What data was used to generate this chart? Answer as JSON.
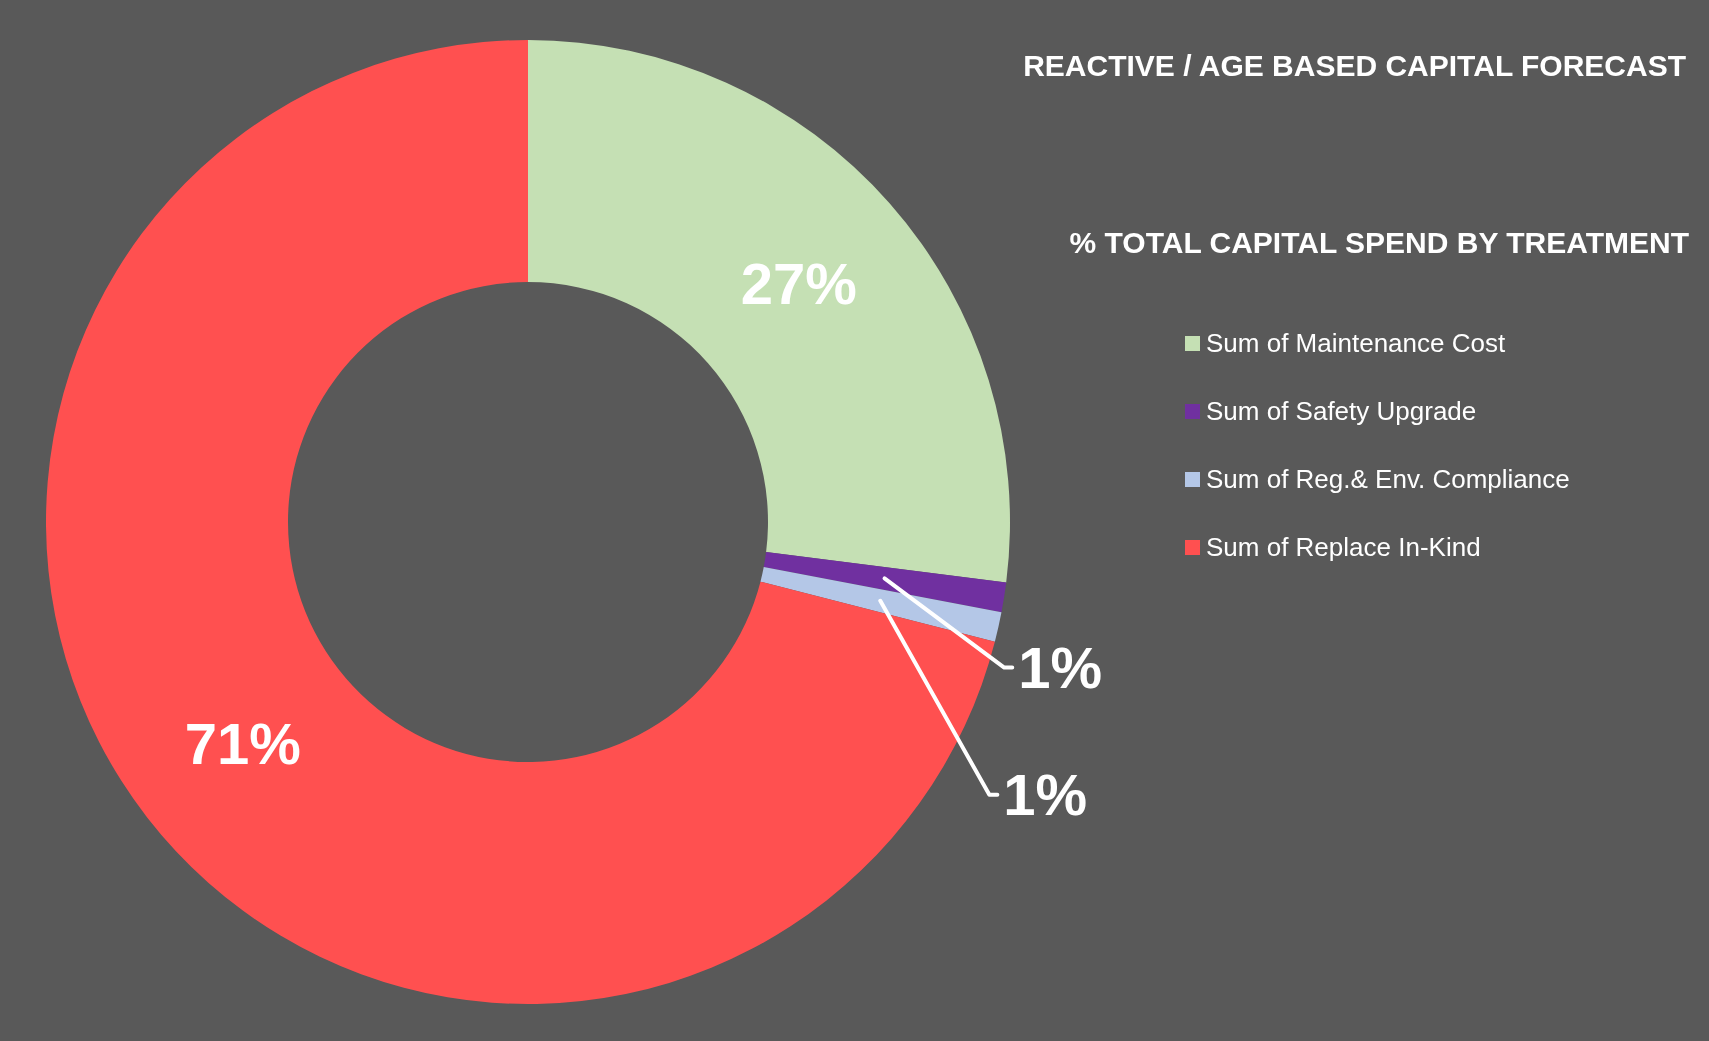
{
  "chart_data": {
    "type": "donut",
    "title": "REACTIVE / AGE BASED CAPITAL FORECAST",
    "subtitle": "% TOTAL CAPITAL SPEND BY TREATMENT",
    "categories": [
      "Sum of Maintenance Cost",
      "Sum of Safety Upgrade",
      "Sum of Reg.& Env. Compliance",
      "Sum of Replace In-Kind"
    ],
    "values": [
      27,
      1,
      1,
      71
    ],
    "colors": [
      "#c5e0b4",
      "#7030a0",
      "#b4c7e7",
      "#ff5050"
    ],
    "value_labels": [
      "27%",
      "1%",
      "1%",
      "71%"
    ],
    "legend": "right"
  }
}
